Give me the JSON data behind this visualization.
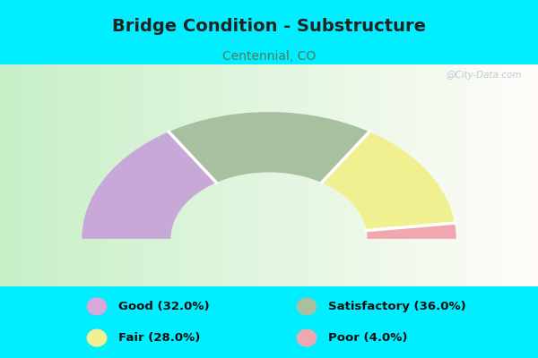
{
  "title": "Bridge Condition - Substructure",
  "subtitle": "Centennial, CO",
  "segments": [
    {
      "label": "Good",
      "pct": 32.0,
      "color": "#c8a8d8"
    },
    {
      "label": "Satisfactory",
      "pct": 36.0,
      "color": "#a8bfa0"
    },
    {
      "label": "Fair",
      "pct": 28.0,
      "color": "#f0f090"
    },
    {
      "label": "Poor",
      "pct": 4.0,
      "color": "#f0a8b0"
    }
  ],
  "background_outer": "#00eeff",
  "chart_bg_left": "#c8ecc8",
  "chart_bg_right": "#eef8f0",
  "donut_inner_r": 0.42,
  "donut_outer_r": 0.8,
  "watermark": "@City-Data.com",
  "title_color": "#222222",
  "subtitle_color": "#557755",
  "legend_colors": [
    "#d8a8d8",
    "#a8bfa0",
    "#f0f090",
    "#f0a8b0"
  ],
  "legend_labels": [
    "Good (32.0%)",
    "Satisfactory (36.0%)",
    "Fair (28.0%)",
    "Poor (4.0%)"
  ]
}
